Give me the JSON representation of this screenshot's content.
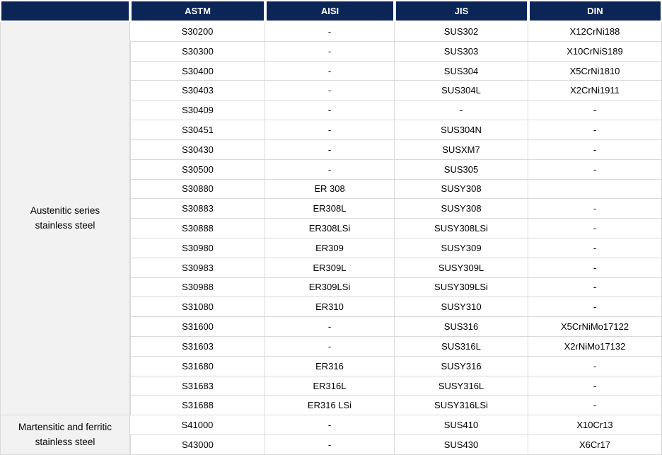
{
  "colors": {
    "header_bg": "#0c2557",
    "header_text": "#ffffff",
    "grid_line": "#d9d9d9",
    "category_bg": "#f2f2f2",
    "cell_text": "#000000"
  },
  "table": {
    "headers": [
      "",
      "ASTM",
      "AISI",
      "JIS",
      "DIN"
    ],
    "sections": [
      {
        "category": "Austenitic series stainless steel",
        "rows": [
          [
            "S30200",
            "-",
            "SUS302",
            "X12CrNi188"
          ],
          [
            "S30300",
            "-",
            "SUS303",
            "X10CrNiS189"
          ],
          [
            "S30400",
            "-",
            "SUS304",
            "X5CrNi1810"
          ],
          [
            "S30403",
            "-",
            "SUS304L",
            "X2CrNi1911"
          ],
          [
            "S30409",
            "-",
            "-",
            "-"
          ],
          [
            "S30451",
            "-",
            "SUS304N",
            "-"
          ],
          [
            "S30430",
            "-",
            "SUSXM7",
            "-"
          ],
          [
            "S30500",
            "-",
            "SUS305",
            "-"
          ],
          [
            "S30880",
            "ER 308",
            "SUSY308",
            ""
          ],
          [
            "S30883",
            "ER308L",
            "SUSY308",
            "-"
          ],
          [
            "S30888",
            "ER308LSi",
            "SUSY308LSi",
            "-"
          ],
          [
            "S30980",
            "ER309",
            "SUSY309",
            "-"
          ],
          [
            "S30983",
            "ER309L",
            "SUSY309L",
            "-"
          ],
          [
            "S30988",
            "ER309LSi",
            "SUSY309LSi",
            "-"
          ],
          [
            "S31080",
            "ER310",
            "SUSY310",
            "-"
          ],
          [
            "S31600",
            "-",
            "SUS316",
            "X5CrNiMo17122"
          ],
          [
            "S31603",
            "-",
            "SUS316L",
            "X2rNiMo17132"
          ],
          [
            "S31680",
            "ER316",
            "SUSY316",
            "-"
          ],
          [
            "S31683",
            "ER316L",
            "SUSY316L",
            "-"
          ],
          [
            "S31688",
            "ER316 LSi",
            "SUSY316LSi",
            "-"
          ]
        ]
      },
      {
        "category": "Martensitic and ferritic stainless steel",
        "rows": [
          [
            "S41000",
            "-",
            "SUS410",
            "X10Cr13"
          ],
          [
            "S43000",
            "-",
            "SUS430",
            "X6Cr17"
          ]
        ]
      }
    ]
  }
}
